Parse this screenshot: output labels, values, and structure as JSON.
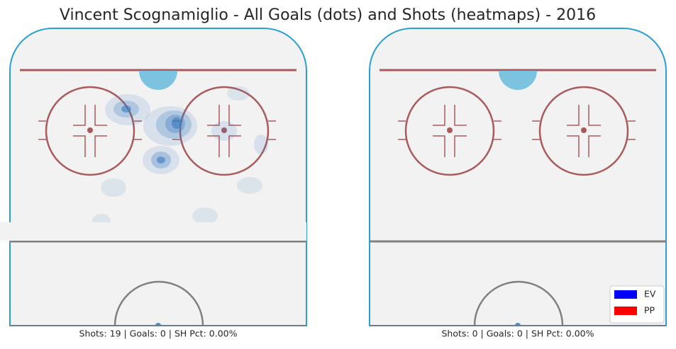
{
  "title": "Vincent Scognamiglio - All Goals (dots) and Shots (heatmaps) - 2016",
  "panels": [
    {
      "caption": "Shots: 19 | Goals: 0 | SH Pct: 0.00%"
    },
    {
      "caption": "Shots: 0 | Goals: 0 | SH Pct: 0.00%"
    }
  ],
  "legend": [
    {
      "label": "EV",
      "color": "#0000ff"
    },
    {
      "label": "PP",
      "color": "#ff0000"
    }
  ]
}
